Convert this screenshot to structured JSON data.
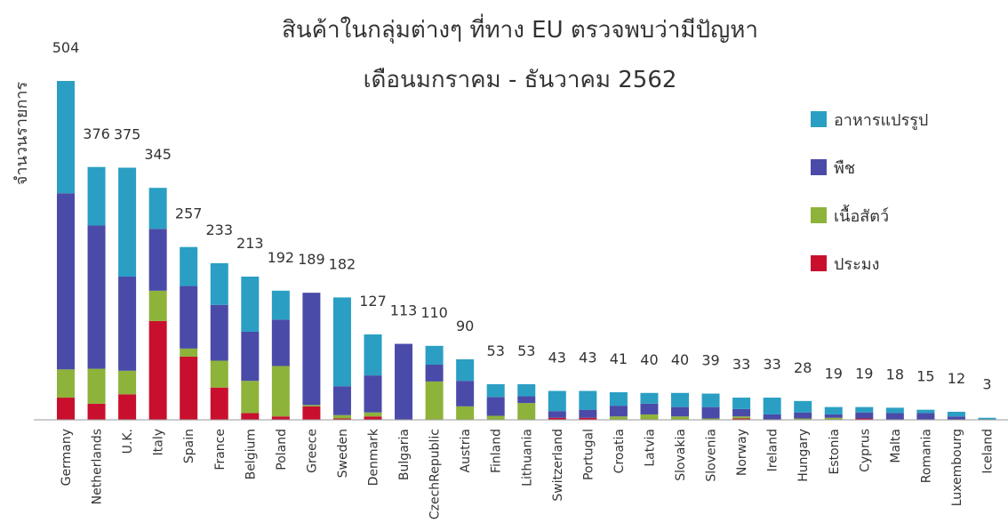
{
  "chart_data": {
    "type": "bar",
    "stacked": true,
    "title": "สินค้าในกลุ่มต่างๆ ที่ทาง EU ตรวจพบว่ามีปัญหา",
    "subtitle": "เดือนมกราคม - ธันวาคม 2562",
    "ylabel": "จำนวนรายการ",
    "xlabel": "",
    "ylim": [
      0,
      504
    ],
    "legend_position": "top-right",
    "categories": [
      "Germany",
      "Netherlands",
      "U.K.",
      "Italy",
      "Spain",
      "France",
      "Belgium",
      "Poland",
      "Greece",
      "Sweden",
      "Denmark",
      "Bulgaria",
      "CzechRepublic",
      "Austria",
      "Finland",
      "Lithuania",
      "Switzerland",
      "Portugal",
      "Croatia",
      "Latvia",
      "Slovakia",
      "Slovenia",
      "Norway",
      "Ireland",
      "Hungary",
      "Estonia",
      "Cyprus",
      "Malta",
      "Romania",
      "Luxembourg",
      "Iceland"
    ],
    "totals": [
      504,
      376,
      375,
      345,
      257,
      233,
      213,
      192,
      189,
      182,
      127,
      113,
      110,
      90,
      53,
      53,
      43,
      43,
      41,
      40,
      40,
      39,
      33,
      33,
      28,
      19,
      19,
      18,
      15,
      12,
      3
    ],
    "series": [
      {
        "name": "ประมง",
        "color": "#c8102e",
        "values": [
          33,
          24,
          38,
          147,
          94,
          48,
          10,
          5,
          20,
          2,
          5,
          0,
          0,
          0,
          0,
          0,
          3,
          3,
          0,
          0,
          0,
          0,
          2,
          0,
          0,
          0,
          2,
          0,
          0,
          0,
          0
        ]
      },
      {
        "name": "เนื้อสัตว์",
        "color": "#8db33a",
        "values": [
          42,
          52,
          35,
          45,
          12,
          40,
          48,
          75,
          2,
          5,
          6,
          0,
          57,
          20,
          6,
          25,
          0,
          0,
          5,
          8,
          5,
          2,
          3,
          0,
          2,
          3,
          0,
          0,
          0,
          0,
          0
        ]
      },
      {
        "name": "พืช",
        "color": "#4a4ba8",
        "values": [
          262,
          213,
          140,
          92,
          93,
          83,
          73,
          69,
          167,
          43,
          55,
          113,
          25,
          38,
          28,
          10,
          10,
          12,
          16,
          16,
          14,
          17,
          11,
          8,
          9,
          5,
          9,
          10,
          10,
          5,
          0
        ]
      },
      {
        "name": "อาหารแปรรูป",
        "color": "#2a9fc3",
        "values": [
          167,
          87,
          162,
          61,
          58,
          62,
          82,
          43,
          0,
          132,
          61,
          0,
          28,
          32,
          19,
          18,
          30,
          28,
          20,
          16,
          21,
          20,
          17,
          25,
          17,
          11,
          8,
          8,
          5,
          7,
          3
        ]
      }
    ]
  }
}
